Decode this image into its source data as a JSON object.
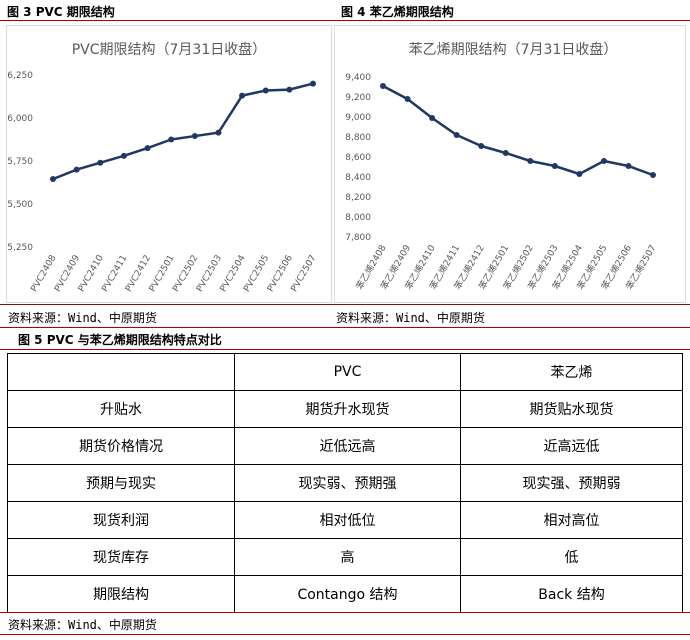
{
  "figures": {
    "fig3_title": "图 3 PVC 期限结构",
    "fig4_title": "图 4 苯乙烯期限结构",
    "fig5_title": "图 5 PVC 与苯乙烯期限结构特点对比"
  },
  "sources": {
    "left": "资料来源：Wind、中原期货",
    "right": "资料来源：Wind、中原期货",
    "bottom": "资料来源：Wind、中原期货"
  },
  "colors": {
    "line": "#1f3864",
    "rule_red": "#b00000",
    "grid": "#d9d9d9"
  },
  "chart_data": [
    {
      "type": "line",
      "title": "PVC期限结构（7月31日收盘）",
      "categories": [
        "PVC2408",
        "PVC2409",
        "PVC2410",
        "PVC2411",
        "PVC2412",
        "PVC2501",
        "PVC2502",
        "PVC2503",
        "PVC2504",
        "PVC2505",
        "PVC2506",
        "PVC2507"
      ],
      "values": [
        5645,
        5700,
        5740,
        5780,
        5825,
        5875,
        5895,
        5915,
        6130,
        6160,
        6165,
        6200
      ],
      "ylim": [
        5250,
        6250
      ],
      "yticks": [
        "5,250",
        "5,500",
        "5,750",
        "6,000",
        "6,250"
      ],
      "ytick_values": [
        5250,
        5500,
        5750,
        6000,
        6250
      ],
      "grid": false,
      "marker": "circle"
    },
    {
      "type": "line",
      "title": "苯乙烯期限结构（7月31日收盘）",
      "categories": [
        "苯乙烯2408",
        "苯乙烯2409",
        "苯乙烯2410",
        "苯乙烯2411",
        "苯乙烯2412",
        "苯乙烯2501",
        "苯乙烯2502",
        "苯乙烯2503",
        "苯乙烯2504",
        "苯乙烯2505",
        "苯乙烯2506",
        "苯乙烯2507"
      ],
      "values": [
        9310,
        9180,
        8990,
        8820,
        8710,
        8640,
        8560,
        8510,
        8430,
        8560,
        8510,
        8420
      ],
      "ylim": [
        7800,
        9400
      ],
      "yticks": [
        "7,800",
        "8,000",
        "8,200",
        "8,400",
        "8,600",
        "8,800",
        "9,000",
        "9,200",
        "9,400"
      ],
      "ytick_values": [
        7800,
        8000,
        8200,
        8400,
        8600,
        8800,
        9000,
        9200,
        9400
      ],
      "grid": false,
      "marker": "circle"
    }
  ],
  "table": {
    "headers": [
      "",
      "PVC",
      "苯乙烯"
    ],
    "rows": [
      [
        "升贴水",
        "期货升水现货",
        "期货贴水现货"
      ],
      [
        "期货价格情况",
        "近低远高",
        "近高远低"
      ],
      [
        "预期与现实",
        "现实弱、预期强",
        "现实强、预期弱"
      ],
      [
        "现货利润",
        "相对低位",
        "相对高位"
      ],
      [
        "现货库存",
        "高",
        "低"
      ],
      [
        "期限结构",
        "Contango 结构",
        "Back 结构"
      ]
    ]
  }
}
